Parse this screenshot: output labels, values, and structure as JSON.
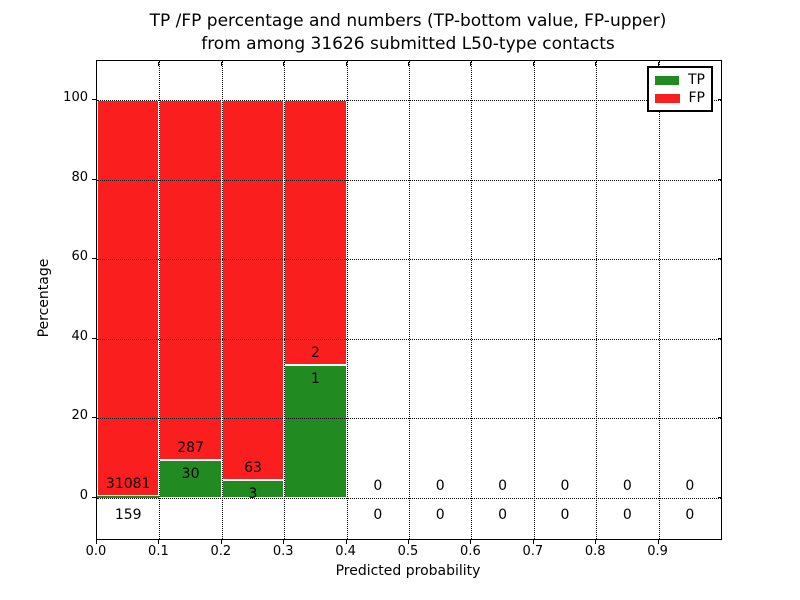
{
  "figure": {
    "title_line1": "TP /FP percentage and numbers (TP-bottom value, FP-upper)",
    "title_line2": "from among 31626 submitted L50-type contacts",
    "xlabel": "Predicted probability",
    "ylabel": "Percentage"
  },
  "legend": {
    "items": [
      {
        "label": "TP",
        "color": "#218a21"
      },
      {
        "label": "FP",
        "color": "#fb1e1e"
      }
    ]
  },
  "colors": {
    "tp_green": "#218a21",
    "fp_red": "#fb1e1e",
    "bar_edge": "#ffffff",
    "grid": "#000000"
  },
  "chart_data": {
    "type": "bar",
    "stacked": true,
    "title": "TP /FP percentage and numbers (TP-bottom value, FP-upper) from among 31626 submitted L50-type contacts",
    "xlabel": "Predicted probability",
    "ylabel": "Percentage",
    "total_submitted": 31626,
    "xlim": [
      0.0,
      1.0
    ],
    "ylim": [
      -10.3,
      109.8
    ],
    "xticks": [
      "0.0",
      "0.1",
      "0.2",
      "0.3",
      "0.4",
      "0.5",
      "0.6",
      "0.7",
      "0.8",
      "0.9"
    ],
    "yticks": [
      0,
      20,
      40,
      60,
      80,
      100
    ],
    "grid": true,
    "legend_position": "upper right",
    "series": [
      {
        "name": "TP",
        "color": "#218a21"
      },
      {
        "name": "FP",
        "color": "#fb1e1e"
      }
    ],
    "bins": [
      {
        "x0": 0.0,
        "x1": 0.1,
        "tp_count": 159,
        "fp_count": 31081,
        "tp_pct": 0.51,
        "fp_pct": 99.49
      },
      {
        "x0": 0.1,
        "x1": 0.2,
        "tp_count": 30,
        "fp_count": 287,
        "tp_pct": 9.46,
        "fp_pct": 90.54
      },
      {
        "x0": 0.2,
        "x1": 0.3,
        "tp_count": 3,
        "fp_count": 63,
        "tp_pct": 4.55,
        "fp_pct": 95.45
      },
      {
        "x0": 0.3,
        "x1": 0.4,
        "tp_count": 1,
        "fp_count": 2,
        "tp_pct": 33.33,
        "fp_pct": 66.67
      },
      {
        "x0": 0.4,
        "x1": 0.5,
        "tp_count": 0,
        "fp_count": 0,
        "tp_pct": 0,
        "fp_pct": 0
      },
      {
        "x0": 0.5,
        "x1": 0.6,
        "tp_count": 0,
        "fp_count": 0,
        "tp_pct": 0,
        "fp_pct": 0
      },
      {
        "x0": 0.6,
        "x1": 0.7,
        "tp_count": 0,
        "fp_count": 0,
        "tp_pct": 0,
        "fp_pct": 0
      },
      {
        "x0": 0.7,
        "x1": 0.8,
        "tp_count": 0,
        "fp_count": 0,
        "tp_pct": 0,
        "fp_pct": 0
      },
      {
        "x0": 0.8,
        "x1": 0.9,
        "tp_count": 0,
        "fp_count": 0,
        "tp_pct": 0,
        "fp_pct": 0
      },
      {
        "x0": 0.9,
        "x1": 1.0,
        "tp_count": 0,
        "fp_count": 0,
        "tp_pct": 0,
        "fp_pct": 0
      }
    ]
  }
}
